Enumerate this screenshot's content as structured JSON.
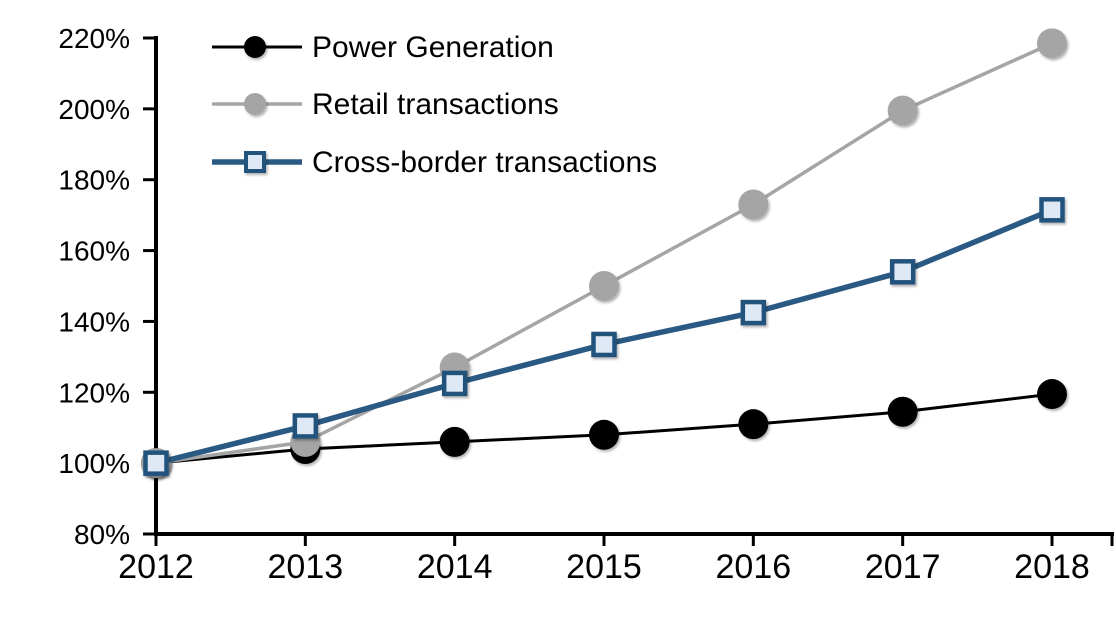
{
  "chart_data": {
    "type": "line",
    "title": "",
    "xlabel": "",
    "ylabel": "",
    "x": [
      2012,
      2013,
      2014,
      2015,
      2016,
      2017,
      2018
    ],
    "x_tick_labels": [
      "2012",
      "2013",
      "2014",
      "2015",
      "2016",
      "2017",
      "2018"
    ],
    "ylim": [
      80,
      220
    ],
    "y_tick_step": 20,
    "y_tick_labels": [
      "80%",
      "100%",
      "120%",
      "140%",
      "160%",
      "180%",
      "200%",
      "220%"
    ],
    "grid": false,
    "legend_position": "top-left-inside",
    "axis_color": "#000000",
    "background_color": "#ffffff",
    "series": [
      {
        "name": "Power Generation",
        "marker": "circle",
        "line_color": "#000000",
        "marker_fill": "#000000",
        "marker_border": "#000000",
        "line_width": 3,
        "values": [
          100,
          104,
          106,
          108,
          111,
          114.5,
          119.5
        ]
      },
      {
        "name": "Retail transactions",
        "marker": "circle",
        "line_color": "#A5A5A5",
        "marker_fill": "#A5A5A5",
        "marker_border": "#A5A5A5",
        "line_width": 3.5,
        "values": [
          100,
          106,
          127,
          150,
          173,
          199.5,
          218.5
        ]
      },
      {
        "name": "Cross-border transactions",
        "marker": "square",
        "line_color": "#2A5A84",
        "marker_fill": "#DFE9F5",
        "marker_border": "#24527D",
        "line_width": 5.5,
        "values": [
          100,
          110.5,
          122.5,
          133.5,
          142.5,
          154,
          171.5
        ]
      }
    ]
  }
}
